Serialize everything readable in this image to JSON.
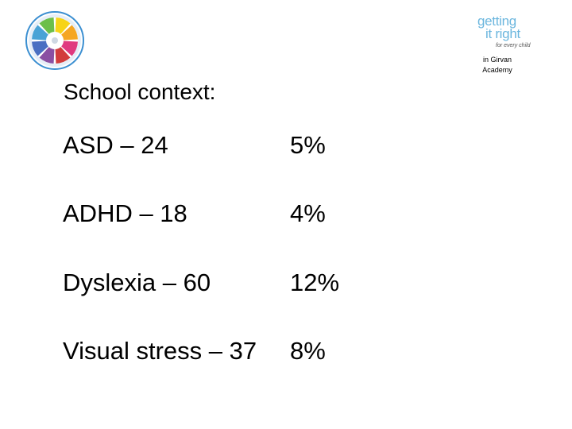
{
  "logos": {
    "wheel": {
      "icon": "wellbeing-wheel-icon",
      "segment_colors": [
        "#f7d417",
        "#f5a623",
        "#e03a7f",
        "#d23c3c",
        "#8a4fa3",
        "#4a6fc2",
        "#49a3d6",
        "#6cbf4a"
      ]
    },
    "gir": {
      "word1": "getting",
      "word2": "it right",
      "tagline": "for every child",
      "color": "#6bb6de"
    }
  },
  "school": {
    "line1": "in Girvan",
    "line2": "Academy"
  },
  "heading": "School context:",
  "stats": [
    {
      "label": "ASD – 24",
      "percent": "5%"
    },
    {
      "label": "ADHD – 18",
      "percent": "4%"
    },
    {
      "label": "Dyslexia – 60",
      "percent": "12%"
    },
    {
      "label": "Visual stress – 37",
      "percent": "8%"
    }
  ]
}
